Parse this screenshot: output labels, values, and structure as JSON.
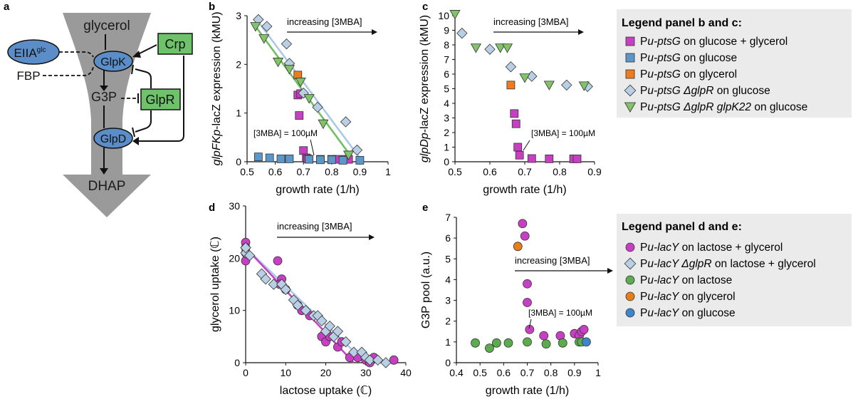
{
  "panel_letters": {
    "a": "a",
    "b": "b",
    "c": "c",
    "d": "d",
    "e": "e"
  },
  "colors": {
    "magenta": "#c73fc3",
    "blue": "#5b97c9",
    "orange": "#f07b1c",
    "diamond": "#b9cfe4",
    "green": "#82c36a",
    "lineMagenta": "#c73fc3",
    "lineBlue": "#a9c8e8",
    "lineGreen": "#6cbf5a",
    "pathway": "#9a9a9a",
    "nodeBlue": "#5b8ec9",
    "nodeGreen": "#6dc26a",
    "legendBg": "#ebebeb",
    "dGreen": "#5dab4f",
    "eOrange": "#e77e1c",
    "eBlue": "#3d86cc"
  },
  "diagram": {
    "glycerol": "glycerol",
    "g3p": "G3P",
    "dhap": "DHAP",
    "fbp": "FBP",
    "eiia": "EIIA",
    "eiia_sup": "glc",
    "glpk": "GlpK",
    "glpr": "GlpR",
    "glpd": "GlpD",
    "crp": "Crp"
  },
  "annot": {
    "increasing": "increasing [3MBA]",
    "mba100": "[3MBA] = 100µM"
  },
  "legend_bc": {
    "title": "Legend panel b and c:",
    "items": [
      {
        "pre": "P",
        "it1": "u-ptsG",
        "rest": " on glucose + glycerol",
        "marker": "square",
        "color": "magenta"
      },
      {
        "pre": "P",
        "it1": "u-ptsG",
        "rest": " on glucose",
        "marker": "square",
        "color": "blue"
      },
      {
        "pre": "P",
        "it1": "u-ptsG",
        "rest": " on glycerol",
        "marker": "square",
        "color": "orange"
      },
      {
        "pre": "P",
        "it1": "u-ptsG ΔglpR",
        "rest": " on glucose",
        "marker": "diamond",
        "color": "diamond"
      },
      {
        "pre": "P",
        "it1": "u-ptsG ΔglpR glpK22",
        "rest": " on glucose",
        "marker": "triangle",
        "color": "green"
      }
    ]
  },
  "legend_de": {
    "title": "Legend panel d and e:",
    "items": [
      {
        "pre": "P",
        "it1": "u-lacY",
        "rest": " on lactose  + glycerol",
        "marker": "circle",
        "color": "magenta"
      },
      {
        "pre": "P",
        "it1": "u-lacY ΔglpR",
        "rest": " on lactose + glycerol",
        "marker": "diamond",
        "color": "diamond"
      },
      {
        "pre": "P",
        "it1": "u-lacY",
        "rest": " on lactose",
        "marker": "circle",
        "color": "dGreen"
      },
      {
        "pre": "P",
        "it1": "u-lacY",
        "rest": " on glycerol",
        "marker": "circle",
        "color": "eOrange"
      },
      {
        "pre": "P",
        "it1": "u-lacY",
        "rest": " on glucose",
        "marker": "circle",
        "color": "eBlue"
      }
    ]
  },
  "chart_data": [
    {
      "panel": "b",
      "type": "scatter",
      "ylabel_italic": "glpFKp",
      "ylabel_rest": "-lacZ expression (kMU)",
      "xlabel": "growth rate (1/h)",
      "xlim": [
        0.5,
        1
      ],
      "ylim": [
        0,
        3
      ],
      "xticks": [
        "0.5",
        "0.6",
        "0.7",
        "0.8",
        "0.9",
        "1"
      ],
      "yticks": [
        "0",
        "1",
        "2",
        "3"
      ],
      "series": [
        {
          "marker": "square",
          "color": "magenta",
          "x": [
            0.68,
            0.69,
            0.685,
            0.7,
            0.71,
            0.715,
            0.76,
            0.8,
            0.82,
            0.85,
            0.86
          ],
          "y": [
            1.37,
            1.4,
            0.95,
            0.23,
            0.08,
            0.06,
            0.05,
            0.05,
            0.05,
            0.05,
            0.05
          ]
        },
        {
          "marker": "square",
          "color": "blue",
          "x": [
            0.54,
            0.58,
            0.62,
            0.65,
            0.72,
            0.76,
            0.8,
            0.84,
            0.9
          ],
          "y": [
            0.1,
            0.08,
            0.06,
            0.06,
            0.05,
            0.04,
            0.04,
            0.03,
            0.03
          ]
        },
        {
          "marker": "square",
          "color": "orange",
          "x": [
            0.68
          ],
          "y": [
            1.78
          ]
        },
        {
          "marker": "diamond",
          "color": "diamond",
          "x": [
            0.54,
            0.57,
            0.64,
            0.65,
            0.7,
            0.75,
            0.85,
            0.89
          ],
          "y": [
            2.92,
            2.78,
            2.42,
            2.02,
            1.41,
            1.12,
            0.82,
            0.24
          ]
        },
        {
          "marker": "triangle",
          "color": "green",
          "x": [
            0.53,
            0.56,
            0.61,
            0.65,
            0.69,
            0.72,
            0.77,
            0.86
          ],
          "y": [
            2.78,
            2.53,
            2.05,
            1.9,
            1.64,
            1.3,
            0.78,
            0.14
          ]
        }
      ],
      "lines": [
        {
          "color": "lineBlue",
          "x": [
            0.53,
            0.91
          ],
          "y": [
            2.95,
            0.0
          ]
        },
        {
          "color": "lineGreen",
          "x": [
            0.53,
            0.87
          ],
          "y": [
            2.78,
            0.1
          ]
        }
      ]
    },
    {
      "panel": "c",
      "type": "scatter",
      "ylabel_italic": "glpDp",
      "ylabel_rest": "-lacZ expression (kMU)",
      "xlabel": "growth rate (1/h)",
      "xlim": [
        0.5,
        0.9
      ],
      "ylim": [
        0,
        10
      ],
      "xticks": [
        "0.5",
        "0.6",
        "0.7",
        "0.8",
        "0.9"
      ],
      "yticks": [
        "0",
        "1",
        "2",
        "3",
        "4",
        "5",
        "6",
        "7",
        "8",
        "9",
        "10"
      ],
      "series": [
        {
          "marker": "square",
          "color": "magenta",
          "x": [
            0.67,
            0.675,
            0.68,
            0.685,
            0.72,
            0.77,
            0.84,
            0.85
          ],
          "y": [
            3.3,
            2.6,
            1.0,
            0.45,
            0.22,
            0.2,
            0.2,
            0.2
          ]
        },
        {
          "marker": "square",
          "color": "orange",
          "x": [
            0.66
          ],
          "y": [
            5.25
          ]
        },
        {
          "marker": "diamond",
          "color": "diamond",
          "x": [
            0.52,
            0.6,
            0.66,
            0.72,
            0.82,
            0.88
          ],
          "y": [
            8.8,
            7.7,
            6.5,
            5.85,
            5.25,
            5.15
          ]
        },
        {
          "marker": "triangle",
          "color": "green",
          "x": [
            0.5,
            0.56,
            0.63,
            0.65,
            0.7,
            0.77,
            0.87
          ],
          "y": [
            10.1,
            7.8,
            7.8,
            7.8,
            5.75,
            5.25,
            5.2
          ]
        }
      ]
    },
    {
      "panel": "d",
      "type": "scatter",
      "ylabel": "glycerol uptake (ℂ)",
      "xlabel": "lactose uptake (ℂ)",
      "xlim": [
        0,
        40
      ],
      "ylim": [
        0,
        30
      ],
      "xticks": [
        "0",
        "10",
        "20",
        "30",
        "40"
      ],
      "yticks": [
        "0",
        "10",
        "20",
        "30"
      ],
      "series": [
        {
          "marker": "circle",
          "color": "magenta",
          "x": [
            0,
            0,
            0,
            0,
            8,
            9,
            8.5,
            10,
            13,
            14,
            16,
            19,
            20,
            21,
            23,
            24,
            26,
            28,
            30,
            31,
            32,
            37
          ],
          "y": [
            19.5,
            23,
            22,
            21,
            19.5,
            16,
            15,
            14,
            11,
            10,
            9,
            5,
            4,
            5,
            3,
            4,
            1,
            1,
            0.5,
            0,
            1,
            0.5
          ]
        },
        {
          "marker": "diamond",
          "color": "diamond",
          "x": [
            0,
            0,
            1,
            4,
            5,
            7,
            9,
            10,
            12,
            13,
            15,
            17,
            18,
            19,
            20,
            21,
            22,
            23,
            25,
            27,
            29,
            30,
            31,
            33,
            35
          ],
          "y": [
            21,
            22,
            20.5,
            17,
            16,
            15,
            15,
            14,
            12,
            11,
            10,
            9,
            9,
            8,
            6,
            7,
            5,
            6,
            4,
            2,
            2,
            1,
            0.5,
            0.5,
            0
          ]
        },
        {
          "marker": "circle",
          "color": "dGreen",
          "x": [],
          "y": []
        }
      ],
      "lines": [
        {
          "color": "lineBlue",
          "x": [
            0,
            30
          ],
          "y": [
            22,
            0
          ]
        },
        {
          "color": "lineMagenta",
          "x": [
            0,
            27
          ],
          "y": [
            22,
            0
          ]
        }
      ]
    },
    {
      "panel": "e",
      "type": "scatter",
      "ylabel": "G3P pool (a.u.)",
      "xlabel": "growth rate (1/h)",
      "xlim": [
        0.4,
        1
      ],
      "ylim": [
        0,
        7
      ],
      "xticks": [
        "0.4",
        "0.5",
        "0.6",
        "0.7",
        "0.8",
        "0.9",
        "1"
      ],
      "yticks": [
        "0",
        "1",
        "2",
        "3",
        "4",
        "5",
        "6",
        "7"
      ],
      "series": [
        {
          "marker": "circle",
          "color": "magenta",
          "x": [
            0.68,
            0.69,
            0.7,
            0.7,
            0.71,
            0.77,
            0.84,
            0.9,
            0.92,
            0.93,
            0.94
          ],
          "y": [
            6.7,
            6.1,
            3.8,
            2.9,
            1.6,
            1.3,
            1.3,
            1.4,
            1.3,
            1.5,
            1.6
          ]
        },
        {
          "marker": "circle",
          "color": "dGreen",
          "x": [
            0.48,
            0.54,
            0.57,
            0.62,
            0.7,
            0.78,
            0.85,
            0.92,
            0.93
          ],
          "y": [
            0.95,
            0.7,
            0.95,
            0.95,
            1.0,
            0.9,
            0.95,
            1.0,
            1.0
          ]
        },
        {
          "marker": "circle",
          "color": "eOrange",
          "x": [
            0.66
          ],
          "y": [
            5.6
          ]
        },
        {
          "marker": "circle",
          "color": "eBlue",
          "x": [
            0.95
          ],
          "y": [
            1.0
          ]
        }
      ]
    }
  ]
}
